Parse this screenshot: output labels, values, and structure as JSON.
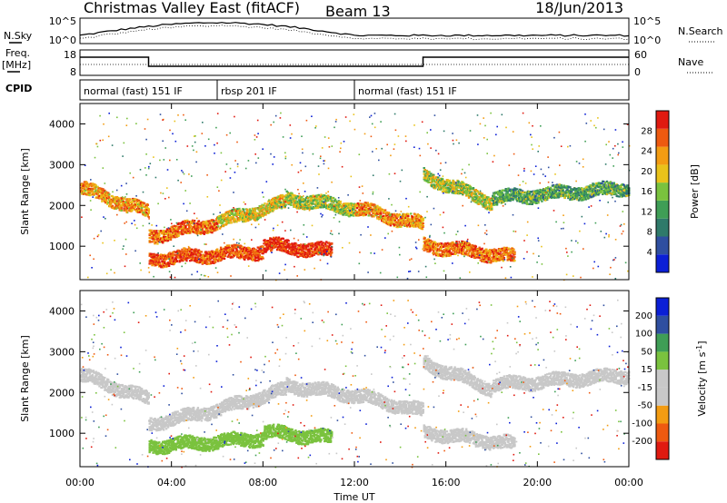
{
  "header": {
    "title": "Christmas Valley East (fitACF)",
    "beam": "Beam 13",
    "date": "18/Jun/2013"
  },
  "noise_panel": {
    "left_label": "N.Sky",
    "left_ticks": [
      "10^5",
      "10^0"
    ],
    "right_ticks": [
      "10^5",
      "10^0"
    ],
    "right_label": "N.Search"
  },
  "freq_panel": {
    "left_label_line1": "Freq.",
    "left_label_line2": "[MHz]",
    "left_ticks": [
      "18",
      "8"
    ],
    "right_ticks": [
      "60",
      "0"
    ],
    "right_label": "Nave"
  },
  "cpid_panel": {
    "label": "CPID",
    "segments": [
      {
        "name": "normal (fast) 151 IF",
        "start_hour": 0
      },
      {
        "name": "rbsp 201 IF",
        "start_hour": 6
      },
      {
        "name": "normal (fast) 151 IF",
        "start_hour": 12
      }
    ]
  },
  "x_axis": {
    "label": "Time UT",
    "range_hours": [
      0,
      24
    ],
    "tick_labels": [
      "00:00",
      "04:00",
      "08:00",
      "12:00",
      "16:00",
      "20:00",
      "00:00"
    ],
    "tick_hours": [
      0,
      4,
      8,
      12,
      16,
      20,
      24
    ]
  },
  "chart_data": [
    {
      "type": "heatmap",
      "ylabel": "Slant Range [km]",
      "ylim": [
        180,
        4500
      ],
      "y_ticks": [
        1000,
        2000,
        3000,
        4000
      ],
      "colorbar": {
        "label": "Power [dB]",
        "ticks": [
          "28",
          "24",
          "20",
          "16",
          "12",
          "8",
          "4"
        ],
        "range": [
          0,
          30
        ],
        "colors": [
          "#0b1fd6",
          "#2f4fa0",
          "#2f7a6a",
          "#3f9e56",
          "#7ac23e",
          "#e9c21a",
          "#f39c12",
          "#ee5a10",
          "#e01a10"
        ]
      },
      "bands": [
        {
          "t0": 0,
          "t1": 3,
          "r0": 2450,
          "r1": 1850,
          "value": 22
        },
        {
          "t0": 3,
          "t1": 6,
          "r0": 1250,
          "r1": 1600,
          "value": 24
        },
        {
          "t0": 6,
          "t1": 9,
          "r0": 1600,
          "r1": 2100,
          "value": 18
        },
        {
          "t0": 9,
          "t1": 12,
          "r0": 2200,
          "r1": 1950,
          "value": 16
        },
        {
          "t0": 12,
          "t1": 15,
          "r0": 1950,
          "r1": 1550,
          "value": 22
        },
        {
          "t0": 3,
          "t1": 8,
          "r0": 700,
          "r1": 900,
          "value": 26
        },
        {
          "t0": 8,
          "t1": 11,
          "r0": 1050,
          "r1": 900,
          "value": 28
        },
        {
          "t0": 15,
          "t1": 18,
          "r0": 2750,
          "r1": 2100,
          "value": 16
        },
        {
          "t0": 18,
          "t1": 24,
          "r0": 2200,
          "r1": 2450,
          "value": 12
        },
        {
          "t0": 15,
          "t1": 19,
          "r0": 1050,
          "r1": 750,
          "value": 24
        }
      ]
    },
    {
      "type": "heatmap",
      "ylabel": "Slant Range [km]",
      "ylim": [
        180,
        4500
      ],
      "y_ticks": [
        1000,
        2000,
        3000,
        4000
      ],
      "colorbar": {
        "label": "Velocity [m s^-1]",
        "ticks": [
          "200",
          "100",
          "50",
          "15",
          "-15",
          "-50",
          "-100",
          "-200"
        ],
        "range": [
          -250,
          250
        ],
        "colors": [
          "#e01a10",
          "#ee5a10",
          "#f39c12",
          "#c8c8c8",
          "#c8c8c8",
          "#7ac23e",
          "#3f9e56",
          "#2f4fa0",
          "#0b1fd6"
        ]
      },
      "bands": [
        {
          "t0": 0,
          "t1": 3,
          "r0": 2450,
          "r1": 1850,
          "value": 0
        },
        {
          "t0": 3,
          "t1": 6,
          "r0": 1250,
          "r1": 1600,
          "value": 0
        },
        {
          "t0": 6,
          "t1": 9,
          "r0": 1600,
          "r1": 2100,
          "value": 0
        },
        {
          "t0": 9,
          "t1": 12,
          "r0": 2200,
          "r1": 1950,
          "value": 0
        },
        {
          "t0": 12,
          "t1": 15,
          "r0": 1950,
          "r1": 1550,
          "value": 0
        },
        {
          "t0": 3,
          "t1": 8,
          "r0": 700,
          "r1": 900,
          "value": 40
        },
        {
          "t0": 8,
          "t1": 11,
          "r0": 1050,
          "r1": 900,
          "value": 60
        },
        {
          "t0": 15,
          "t1": 18,
          "r0": 2750,
          "r1": 2100,
          "value": 0
        },
        {
          "t0": 18,
          "t1": 24,
          "r0": 2200,
          "r1": 2450,
          "value": 0
        },
        {
          "t0": 15,
          "t1": 19,
          "r0": 1050,
          "r1": 750,
          "value": 0
        }
      ]
    }
  ]
}
